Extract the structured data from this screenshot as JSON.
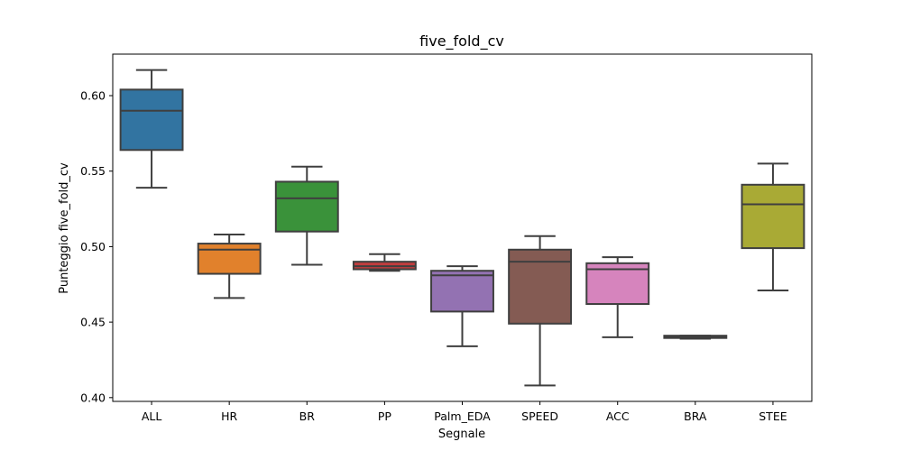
{
  "chart_data": {
    "type": "box",
    "title": "five_fold_cv",
    "xlabel": "Segnale",
    "ylabel": "Punteggio five_fold_cv",
    "ylim": [
      0.3975,
      0.6275
    ],
    "yticks": [
      0.4,
      0.45,
      0.5,
      0.55,
      0.6
    ],
    "ytick_labels": [
      "0.40",
      "0.45",
      "0.50",
      "0.55",
      "0.60"
    ],
    "grid": false,
    "categories": [
      "ALL",
      "HR",
      "BR",
      "PP",
      "Palm_EDA",
      "SPEED",
      "ACC",
      "BRA",
      "STEE"
    ],
    "boxes": [
      {
        "category": "ALL",
        "whisker_low": 0.539,
        "q1": 0.564,
        "median": 0.59,
        "q3": 0.604,
        "whisker_high": 0.617,
        "color": "#3274a1"
      },
      {
        "category": "HR",
        "whisker_low": 0.466,
        "q1": 0.482,
        "median": 0.498,
        "q3": 0.502,
        "whisker_high": 0.508,
        "color": "#e1812c"
      },
      {
        "category": "BR",
        "whisker_low": 0.488,
        "q1": 0.51,
        "median": 0.532,
        "q3": 0.543,
        "whisker_high": 0.553,
        "color": "#3a923a"
      },
      {
        "category": "PP",
        "whisker_low": 0.484,
        "q1": 0.485,
        "median": 0.487,
        "q3": 0.49,
        "whisker_high": 0.495,
        "color": "#c03d3e"
      },
      {
        "category": "Palm_EDA",
        "whisker_low": 0.434,
        "q1": 0.457,
        "median": 0.481,
        "q3": 0.484,
        "whisker_high": 0.487,
        "color": "#9372b2"
      },
      {
        "category": "SPEED",
        "whisker_low": 0.408,
        "q1": 0.449,
        "median": 0.49,
        "q3": 0.498,
        "whisker_high": 0.507,
        "color": "#845b53"
      },
      {
        "category": "ACC",
        "whisker_low": 0.44,
        "q1": 0.462,
        "median": 0.485,
        "q3": 0.489,
        "whisker_high": 0.493,
        "color": "#d684bd"
      },
      {
        "category": "BRA",
        "whisker_low": 0.439,
        "q1": 0.4395,
        "median": 0.44,
        "q3": 0.441,
        "whisker_high": 0.441,
        "color": "#7f7f7f"
      },
      {
        "category": "STEE",
        "whisker_low": 0.471,
        "q1": 0.499,
        "median": 0.528,
        "q3": 0.541,
        "whisker_high": 0.555,
        "color": "#a9aa35"
      }
    ]
  }
}
